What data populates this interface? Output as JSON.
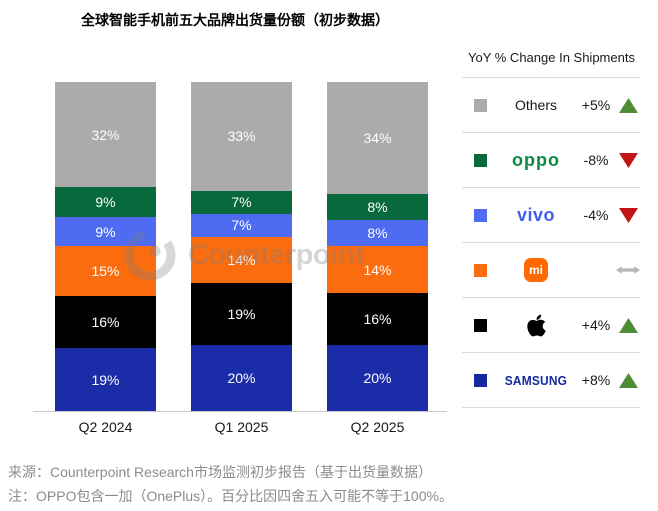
{
  "title": "全球智能手机前五大品牌出货量份额（初步数据）",
  "watermark_text": "Counterpoint",
  "chart_data": {
    "type": "bar",
    "stacked": true,
    "title": "全球智能手机前五大品牌出货量份额（初步数据）",
    "unit": "%",
    "ylim": [
      0,
      100
    ],
    "grid": false,
    "legend_position": "right",
    "categories": [
      "Q2 2024",
      "Q1 2025",
      "Q2 2025"
    ],
    "series": [
      {
        "name": "Samsung",
        "color": "#1B2CA8",
        "values": [
          19,
          20,
          20
        ]
      },
      {
        "name": "Apple",
        "color": "#000000",
        "values": [
          16,
          19,
          16
        ]
      },
      {
        "name": "Xiaomi",
        "color": "#FB6C0F",
        "values": [
          15,
          14,
          14
        ]
      },
      {
        "name": "vivo",
        "color": "#4E6BF2",
        "values": [
          9,
          7,
          8
        ]
      },
      {
        "name": "OPPO",
        "color": "#07693C",
        "values": [
          9,
          7,
          8
        ]
      },
      {
        "name": "Others",
        "color": "#ABABAB",
        "values": [
          32,
          33,
          34
        ]
      }
    ]
  },
  "legend": {
    "header": "YoY % Change In Shipments",
    "rows": [
      {
        "brand": "Others",
        "label": "Others",
        "change": "+5%",
        "direction": "up"
      },
      {
        "brand": "OPPO",
        "logo_text": "oppo",
        "change": "-8%",
        "direction": "down"
      },
      {
        "brand": "vivo",
        "logo_text": "vivo",
        "change": "-4%",
        "direction": "down"
      },
      {
        "brand": "Xiaomi",
        "logo_text": "mi",
        "change": "",
        "direction": "flat"
      },
      {
        "brand": "Apple",
        "logo_text": "",
        "change": "+4%",
        "direction": "up"
      },
      {
        "brand": "Samsung",
        "logo_text": "SAMSUNG",
        "change": "+8%",
        "direction": "up"
      }
    ]
  },
  "footer": {
    "source": "来源：Counterpoint Research市场监测初步报告（基于出货量数据）",
    "note": "注：OPPO包含一加（OnePlus）。百分比因四舍五入可能不等于100%。"
  },
  "colors": {
    "up_arrow": "#4E8C35",
    "down_arrow": "#C11414",
    "flat_arrow": "#B5B5B5",
    "oppo_logo": "#0B8A45",
    "vivo_logo": "#415FF0",
    "samsung_logo": "#1428A0",
    "apple_logo": "#000000",
    "xiaomi_logo": "#FF6900",
    "bar_label": "#FFFFFF",
    "watermark": "#7D7D7D"
  }
}
